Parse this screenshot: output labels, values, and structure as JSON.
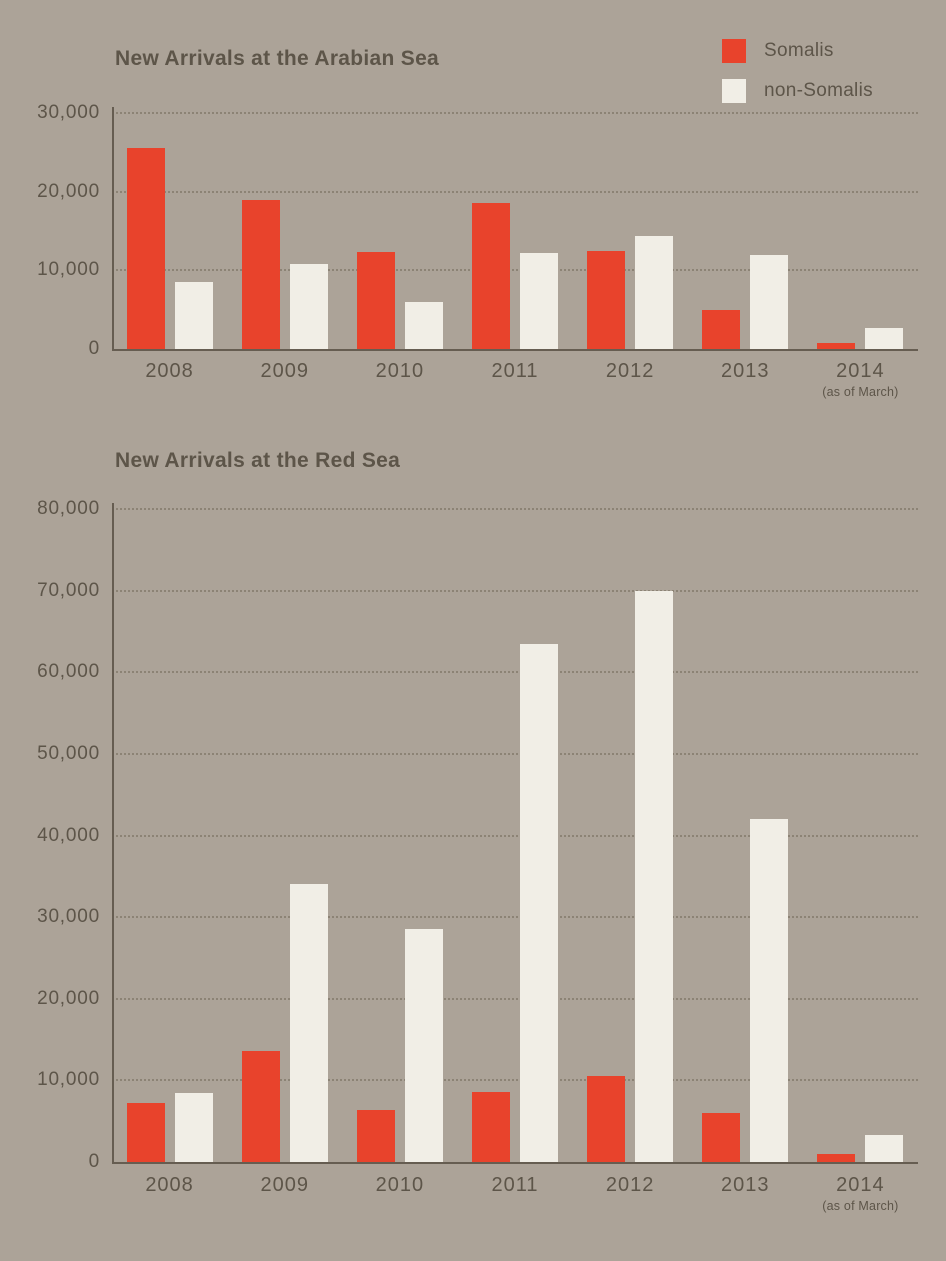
{
  "page": {
    "background": "#aca398",
    "text_color": "#5d5549",
    "grid_color": "#8c8375",
    "axis_color": "#665d51"
  },
  "legend": {
    "items": [
      {
        "label": "Somalis",
        "color": "#e8432c"
      },
      {
        "label": "non-Somalis",
        "color": "#f1eee6"
      }
    ]
  },
  "chart_data": [
    {
      "type": "bar",
      "title": "New Arrivals at the Arabian Sea",
      "categories": [
        "2008",
        "2009",
        "2010",
        "2011",
        "2012",
        "2013",
        "2014"
      ],
      "category_note": {
        "index": 6,
        "text": "(as of March)"
      },
      "series": [
        {
          "name": "Somalis",
          "color": "#e8432c",
          "values": [
            25500,
            19000,
            12300,
            18600,
            12400,
            5000,
            700
          ]
        },
        {
          "name": "non-Somalis",
          "color": "#f1eee6",
          "values": [
            8500,
            10800,
            6000,
            12200,
            14400,
            12000,
            2700
          ]
        }
      ],
      "ylim": [
        0,
        30000
      ],
      "yticks": [
        0,
        10000,
        20000,
        30000
      ],
      "grid": "dotted-horizontal",
      "legend_position": "top-right"
    },
    {
      "type": "bar",
      "title": "New Arrivals at the Red Sea",
      "categories": [
        "2008",
        "2009",
        "2010",
        "2011",
        "2012",
        "2013",
        "2014"
      ],
      "category_note": {
        "index": 6,
        "text": "(as of March)"
      },
      "series": [
        {
          "name": "Somalis",
          "color": "#e8432c",
          "values": [
            7200,
            13600,
            6400,
            8600,
            10500,
            6000,
            1000
          ]
        },
        {
          "name": "non-Somalis",
          "color": "#f1eee6",
          "values": [
            8400,
            34000,
            28500,
            63500,
            70000,
            42000,
            3300
          ]
        }
      ],
      "ylim": [
        0,
        80000
      ],
      "yticks": [
        0,
        10000,
        20000,
        30000,
        40000,
        50000,
        60000,
        70000,
        80000
      ],
      "grid": "dotted-horizontal",
      "legend_position": "none"
    }
  ]
}
